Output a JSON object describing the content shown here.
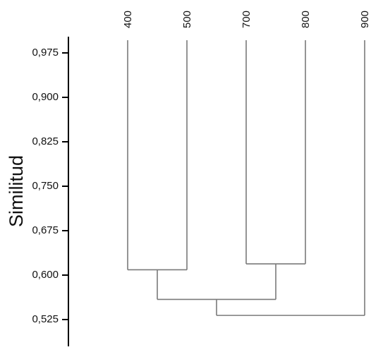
{
  "chart_data": {
    "type": "dendrogram",
    "title": "",
    "ylabel": "Similitud",
    "xlabel": "",
    "leaves": [
      "400",
      "500",
      "700",
      "800",
      "900"
    ],
    "y_ticks": [
      "0,975",
      "0,900",
      "0,825",
      "0,750",
      "0,675",
      "0,600",
      "0,525"
    ],
    "y_tick_values": [
      0.975,
      0.9,
      0.825,
      0.75,
      0.675,
      0.6,
      0.525
    ],
    "ylim": [
      0.5,
      1.0
    ],
    "leaf_similarity": 1.0,
    "merges": [
      {
        "left": "400",
        "right": "500",
        "similarity": 0.609
      },
      {
        "left": "700",
        "right": "800",
        "similarity": 0.619
      },
      {
        "left": "400+500",
        "right": "700+800",
        "similarity": 0.559
      },
      {
        "left": "400+500+700+800",
        "right": "900",
        "similarity": 0.532
      }
    ],
    "line_color": "#7a7a7a",
    "axis_color": "#000000"
  }
}
